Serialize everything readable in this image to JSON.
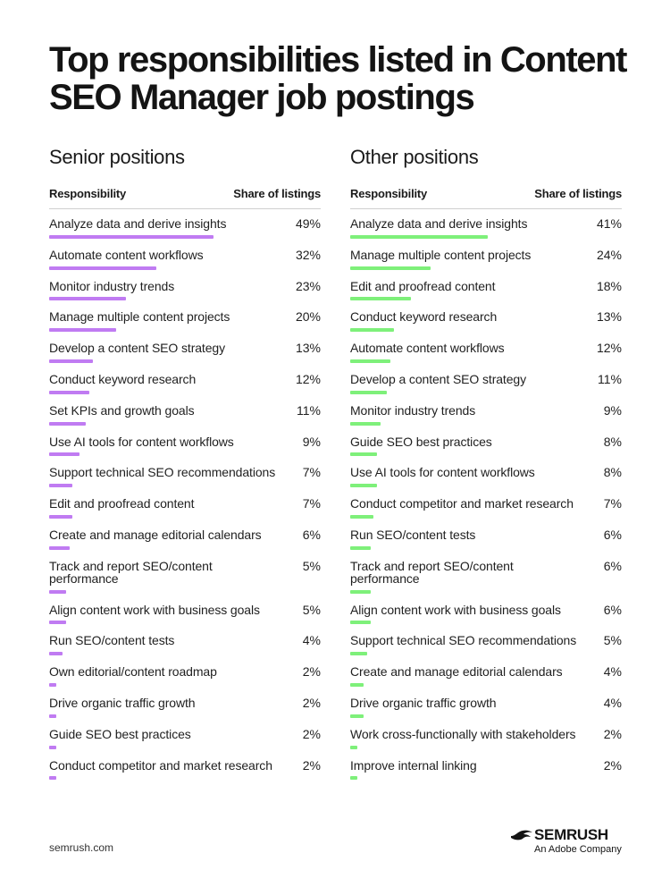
{
  "title": "Top responsibilities listed in Content SEO Manager job postings",
  "colors": {
    "senior_bar": "#c07bf2",
    "other_bar": "#7ef07a"
  },
  "chart_data": [
    {
      "type": "bar",
      "title": "Senior positions",
      "xlabel": "Share of listings",
      "ylabel": "Responsibility",
      "value_unit": "%",
      "categories": [
        "Analyze data and derive insights",
        "Automate content workflows",
        "Monitor industry trends",
        "Manage multiple content projects",
        "Develop a content SEO strategy",
        "Conduct keyword research",
        "Set KPIs and growth goals",
        "Use AI tools for content workflows",
        "Support technical SEO recommendations",
        "Edit and proofread content",
        "Create and manage editorial calendars",
        "Track and report SEO/content performance",
        "Align content work with business goals",
        "Run SEO/content tests",
        "Own editorial/content roadmap",
        "Drive organic traffic growth",
        "Guide SEO best practices",
        "Conduct competitor and market research"
      ],
      "values": [
        49,
        32,
        23,
        20,
        13,
        12,
        11,
        9,
        7,
        7,
        6,
        5,
        5,
        4,
        2,
        2,
        2,
        2
      ]
    },
    {
      "type": "bar",
      "title": "Other positions",
      "xlabel": "Share of listings",
      "ylabel": "Responsibility",
      "value_unit": "%",
      "categories": [
        "Analyze data and derive insights",
        "Manage multiple content projects",
        "Edit and proofread content",
        "Conduct keyword research",
        "Automate content workflows",
        "Develop a content SEO strategy",
        "Monitor industry trends",
        "Guide SEO best practices",
        "Use AI tools for content workflows",
        "Conduct competitor and market research",
        "Run SEO/content tests",
        "Track and report SEO/content performance",
        "Align content work with business goals",
        "Support technical SEO recommendations",
        "Create and manage editorial calendars",
        "Drive organic traffic growth",
        "Work cross-functionally with stakeholders",
        "Improve internal linking"
      ],
      "values": [
        41,
        24,
        18,
        13,
        12,
        11,
        9,
        8,
        8,
        7,
        6,
        6,
        6,
        5,
        4,
        4,
        2,
        2
      ]
    }
  ],
  "footer": {
    "url": "semrush.com",
    "logo_text": "SEMRUSH",
    "logo_subtext": "An Adobe Company"
  }
}
